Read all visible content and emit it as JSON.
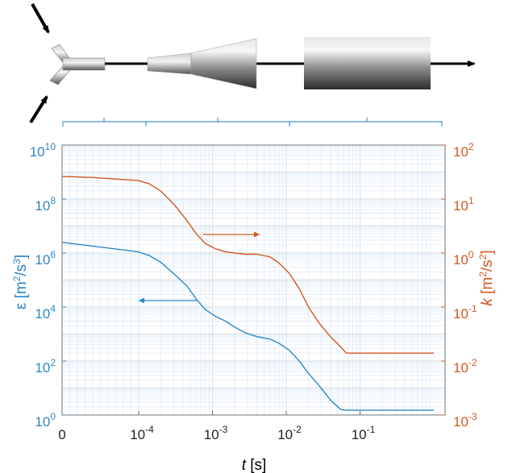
{
  "colors": {
    "epsilon": "#2a86c9",
    "k": "#d4561f",
    "grid_minor": "#dbe9f5",
    "grid_major": "#c6d3de",
    "axis": "#666666",
    "bracket": "#4a8fd6"
  },
  "chart_data": {
    "type": "line",
    "xlabel_italic": "t",
    "xlabel_unit": "[s]",
    "x_scale": "log with a linear segment near 0",
    "xlim": [
      0,
      1
    ],
    "x_ticks": [
      {
        "base": "0",
        "exp": ""
      },
      {
        "base": "10",
        "exp": "-4"
      },
      {
        "base": "10",
        "exp": "-3"
      },
      {
        "base": "10",
        "exp": "-2"
      },
      {
        "base": "10",
        "exp": "-1"
      }
    ],
    "y_left": {
      "label": "ε [m²/s³]",
      "scale": "log",
      "ylim": [
        1,
        10000000000
      ],
      "ticks": [
        {
          "base": "10",
          "exp": "0"
        },
        {
          "base": "10",
          "exp": "2"
        },
        {
          "base": "10",
          "exp": "4"
        },
        {
          "base": "10",
          "exp": "6"
        },
        {
          "base": "10",
          "exp": "8"
        },
        {
          "base": "10",
          "exp": "10"
        }
      ]
    },
    "y_right": {
      "label": "k [m²/s²]",
      "scale": "log",
      "ylim": [
        0.001,
        100
      ],
      "ticks": [
        {
          "base": "10",
          "exp": "-3"
        },
        {
          "base": "10",
          "exp": "-2"
        },
        {
          "base": "10",
          "exp": "-1"
        },
        {
          "base": "10",
          "exp": "0"
        },
        {
          "base": "10",
          "exp": "1"
        },
        {
          "base": "10",
          "exp": "2"
        }
      ]
    },
    "grid": true,
    "series": [
      {
        "key": "epsilon",
        "axis": "left",
        "x": [
          0,
          1e-05,
          4e-05,
          0.0001,
          0.00014,
          0.0002,
          0.0003,
          0.00045,
          0.0006,
          0.0008,
          0.0011,
          0.0015,
          0.002,
          0.0028,
          0.004,
          0.006,
          0.008,
          0.011,
          0.015,
          0.02,
          0.028,
          0.04,
          0.055,
          0.065,
          0.1,
          0.3,
          1
        ],
        "y": [
          2500000,
          2300000,
          1800000,
          1100000,
          800000,
          450000,
          170000,
          60000,
          20000,
          8000,
          4500,
          3000,
          1800,
          1100,
          800,
          650,
          450,
          250,
          100,
          35,
          12,
          3.5,
          1.6,
          1.5,
          1.5,
          1.5,
          1.5
        ]
      },
      {
        "key": "k",
        "axis": "right",
        "x": [
          0,
          1e-05,
          4e-05,
          0.0001,
          0.00014,
          0.0002,
          0.0003,
          0.00045,
          0.0006,
          0.0008,
          0.0011,
          0.0015,
          0.002,
          0.0028,
          0.004,
          0.006,
          0.008,
          0.011,
          0.015,
          0.02,
          0.028,
          0.04,
          0.055,
          0.065,
          0.1,
          0.3,
          1
        ],
        "y": [
          26,
          26,
          25,
          22,
          19,
          14,
          8,
          4,
          2.3,
          1.5,
          1.2,
          1.05,
          1.0,
          0.95,
          0.95,
          0.85,
          0.65,
          0.42,
          0.22,
          0.1,
          0.05,
          0.028,
          0.018,
          0.014,
          0.014,
          0.014,
          0.014
        ]
      }
    ],
    "annotations": [
      {
        "type": "arrow",
        "series": "k",
        "direction": "right",
        "meaning": "curve belongs to right axis"
      },
      {
        "type": "arrow",
        "series": "epsilon",
        "direction": "left",
        "meaning": "curve belongs to left axis"
      }
    ]
  },
  "schematic": {
    "description_free": true,
    "inlet_arrows": 2,
    "sections": [
      "nozzle",
      "diffuser",
      "cylinder"
    ]
  }
}
